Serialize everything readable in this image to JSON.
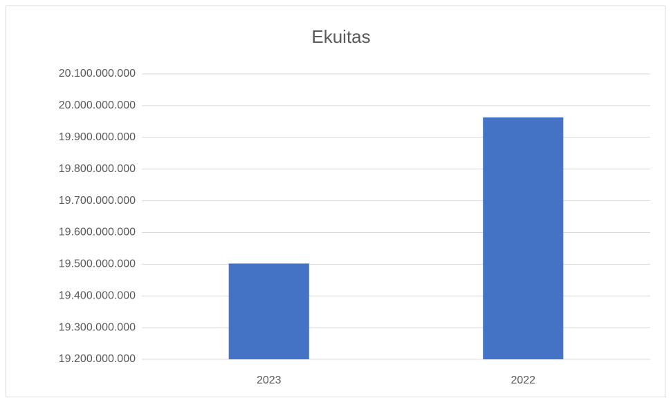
{
  "chart_data": {
    "type": "bar",
    "title": "Ekuitas",
    "categories": [
      "2023",
      "2022"
    ],
    "values": [
      19502000000,
      19963000000
    ],
    "color": "#4472c4",
    "ylim": [
      19200000000,
      20100000000
    ],
    "yticks": [
      {
        "value": 19200000000,
        "label": "19.200.000.000"
      },
      {
        "value": 19300000000,
        "label": "19.300.000.000"
      },
      {
        "value": 19400000000,
        "label": "19.400.000.000"
      },
      {
        "value": 19500000000,
        "label": "19.500.000.000"
      },
      {
        "value": 19600000000,
        "label": "19.600.000.000"
      },
      {
        "value": 19700000000,
        "label": "19.700.000.000"
      },
      {
        "value": 19800000000,
        "label": "19.800.000.000"
      },
      {
        "value": 19900000000,
        "label": "19.900.000.000"
      },
      {
        "value": 20000000000,
        "label": "20.000.000.000"
      },
      {
        "value": 20100000000,
        "label": "20.100.000.000"
      }
    ],
    "grid": true
  }
}
